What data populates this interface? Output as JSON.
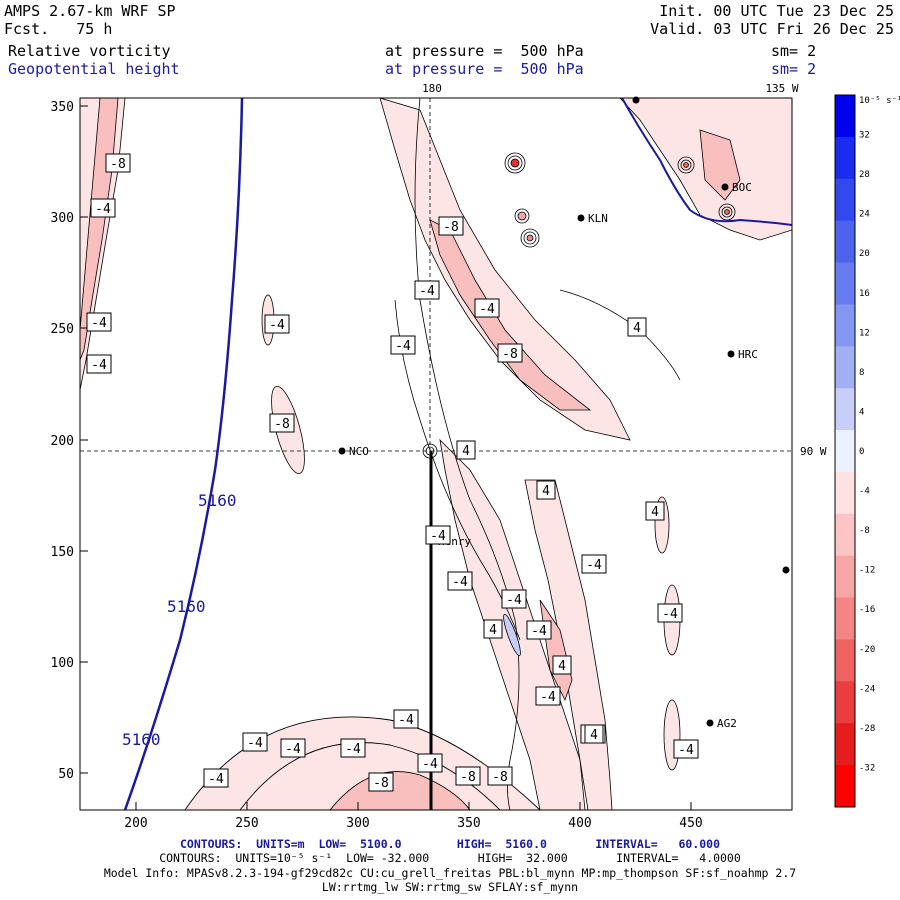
{
  "header": {
    "model_title": "AMPS 2.67-km WRF SP",
    "forecast": "Fcst.   75 h",
    "init": "Init. 00 UTC Tue 23 Dec 25",
    "valid": "Valid. 03 UTC Fri 26 Dec 25",
    "field1_name": "Relative vorticity",
    "field1_level": "at pressure =  500 hPa",
    "field1_sm": "sm= 2",
    "field2_name": "Geopotential height",
    "field2_level": "at pressure =  500 hPa",
    "field2_sm": "sm= 2"
  },
  "axes": {
    "x_ticks": [
      "200",
      "250",
      "300",
      "350",
      "400",
      "450"
    ],
    "y_ticks": [
      "350",
      "300",
      "250",
      "200",
      "150",
      "100",
      "50"
    ],
    "meridian_top_label": "180",
    "meridian_top_label2": "135 W",
    "parallel_label": "90 W"
  },
  "stations": [
    {
      "name": "NCO"
    },
    {
      "name": "Henry"
    },
    {
      "name": "KLN"
    },
    {
      "name": "BOC"
    },
    {
      "name": "HRC"
    },
    {
      "name": "AG2"
    }
  ],
  "contour_labels": {
    "height": [
      "5160",
      "5160",
      "5160"
    ],
    "vorticity": [
      "-8",
      "-4",
      "-8",
      "-4",
      "-4",
      "-4",
      "-4",
      "-4",
      "-8",
      "4",
      "-4",
      "-8",
      "4",
      "4",
      "4",
      "-4",
      "-4",
      "-4",
      "-4",
      "-4",
      "4",
      "-4",
      "4",
      "-4",
      "-8",
      "-4",
      "-4",
      "-4",
      "-4",
      "-4",
      "-4",
      "-4",
      "-8",
      "-8",
      "-8",
      "4",
      "-4"
    ]
  },
  "colorbar": {
    "unit": "10⁻⁵ s⁻¹",
    "labels": [
      "32",
      "28",
      "24",
      "20",
      "16",
      "12",
      "8",
      "4",
      "0",
      "-4",
      "-8",
      "-12",
      "-16",
      "-20",
      "-24",
      "-28",
      "-32"
    ],
    "colors": [
      "#0000ee",
      "#1a2cee",
      "#3349ee",
      "#4d63ee",
      "#667cf0",
      "#8296f2",
      "#a1b0f5",
      "#c6cef9",
      "#ecf0ff",
      "#ffe2e2",
      "#fcc4c4",
      "#f8a5a5",
      "#f48585",
      "#ef6262",
      "#ea3d3d",
      "#e51d1d",
      "#ff0000"
    ]
  },
  "footer": {
    "line1": "CONTOURS:  UNITS=m  LOW=  5100.0        HIGH=  5160.0       INTERVAL=   60.000",
    "line2": "CONTOURS:  UNITS=10⁻⁵ s⁻¹  LOW= -32.000       HIGH=  32.000       INTERVAL=   4.0000",
    "line3": "Model Info: MPASv8.2.3-194-gf29cd82c CU:cu_grell_freitas PBL:bl_mynn MP:mp_thompson SF:sf_noahmp 2.7",
    "line4": "LW:rrtmg_lw SW:rrtmg_sw SFLAY:sf_mynn"
  }
}
